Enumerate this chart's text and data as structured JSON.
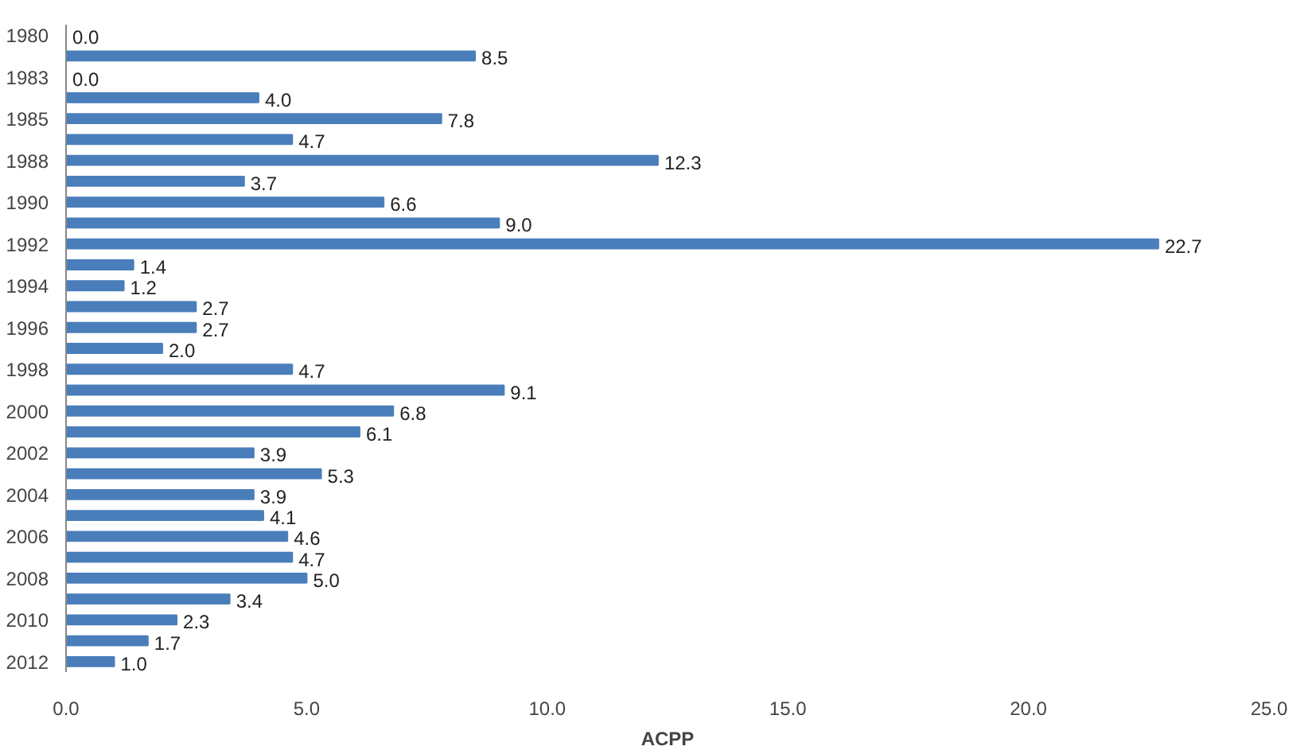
{
  "chart_data": {
    "type": "bar",
    "orientation": "horizontal",
    "xlabel": "ACPP",
    "categories": [
      "1980",
      null,
      "1983",
      null,
      "1985",
      null,
      "1988",
      null,
      "1990",
      null,
      "1992",
      null,
      "1994",
      null,
      "1996",
      null,
      "1998",
      null,
      "2000",
      null,
      "2002",
      null,
      "2004",
      null,
      "2006",
      null,
      "2008",
      null,
      "2010",
      null,
      "2012"
    ],
    "values": [
      0.0,
      8.5,
      0.0,
      4.0,
      7.8,
      4.7,
      12.3,
      3.7,
      6.6,
      9.0,
      22.7,
      1.4,
      1.2,
      2.7,
      2.7,
      2.0,
      4.7,
      9.1,
      6.8,
      6.1,
      3.9,
      5.3,
      3.9,
      4.1,
      4.6,
      4.7,
      5.0,
      3.4,
      2.3,
      1.7,
      1.0
    ],
    "color": "#4a7ebb",
    "xlim": [
      0,
      25
    ],
    "xticks": [
      {
        "value": 0,
        "label": "0.0"
      },
      {
        "value": 5,
        "label": "5.0"
      },
      {
        "value": 10,
        "label": "10.0"
      },
      {
        "value": 15,
        "label": "15.0"
      },
      {
        "value": 20,
        "label": "20.0"
      },
      {
        "value": 25,
        "label": "25.0"
      }
    ],
    "value_labels": [
      "0.0",
      "8.5",
      "0.0",
      "4.0",
      "7.8",
      "4.7",
      "12.3",
      "3.7",
      "6.6",
      "9.0",
      "22.7",
      "1.4",
      "1.2",
      "2.7",
      "2.7",
      "2.0",
      "4.7",
      "9.1",
      "6.8",
      "6.1",
      "3.9",
      "5.3",
      "3.9",
      "4.1",
      "4.6",
      "4.7",
      "5.0",
      "3.4",
      "2.3",
      "1.7",
      "1.0"
    ],
    "grid": false
  }
}
